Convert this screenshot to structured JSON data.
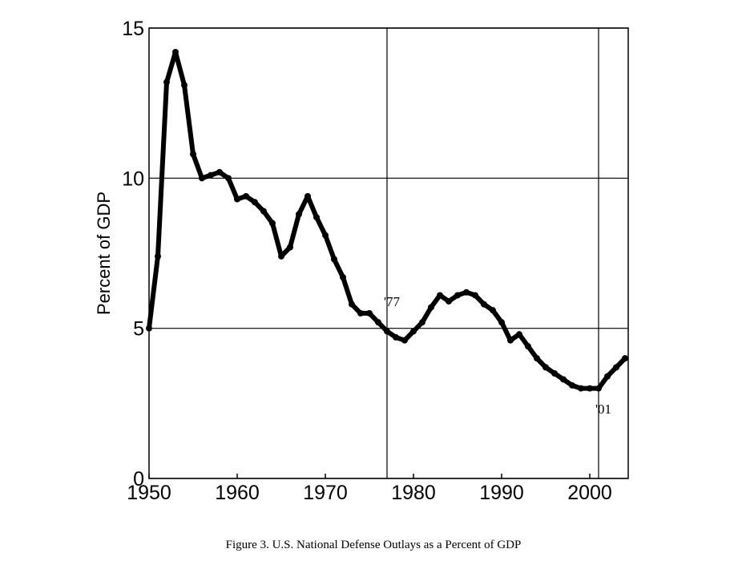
{
  "chart_data": {
    "type": "line",
    "title": "Figure 3.  U.S. National Defense Outlays as a Percent of GDP",
    "y_label": "Percent of GDP",
    "x": [
      1950,
      1951,
      1952,
      1953,
      1954,
      1955,
      1956,
      1957,
      1958,
      1959,
      1960,
      1961,
      1962,
      1963,
      1964,
      1965,
      1966,
      1967,
      1968,
      1969,
      1970,
      1971,
      1972,
      1973,
      1974,
      1975,
      1976,
      1977,
      1978,
      1979,
      1980,
      1981,
      1982,
      1983,
      1984,
      1985,
      1986,
      1987,
      1988,
      1989,
      1990,
      1991,
      1992,
      1993,
      1994,
      1995,
      1996,
      1997,
      1998,
      1999,
      2000,
      2001,
      2002,
      2003,
      2004
    ],
    "values": [
      5.0,
      7.4,
      13.2,
      14.2,
      13.1,
      10.8,
      10.0,
      10.1,
      10.2,
      10.0,
      9.3,
      9.4,
      9.2,
      8.9,
      8.5,
      7.4,
      7.7,
      8.8,
      9.4,
      8.7,
      8.1,
      7.3,
      6.7,
      5.8,
      5.5,
      5.5,
      5.2,
      4.9,
      4.7,
      4.6,
      4.9,
      5.2,
      5.7,
      6.1,
      5.9,
      6.1,
      6.2,
      6.1,
      5.8,
      5.6,
      5.2,
      4.6,
      4.8,
      4.4,
      4.0,
      3.7,
      3.5,
      3.3,
      3.1,
      3.0,
      3.0,
      3.0,
      3.4,
      3.7,
      4.0
    ],
    "color": "#000000",
    "xlim": [
      1950,
      2004
    ],
    "xticks": [
      1950,
      1960,
      1970,
      1980,
      1990,
      2000
    ],
    "ylim": [
      0,
      15
    ],
    "yticks": [
      0,
      5,
      10,
      15
    ],
    "grid": true,
    "annotations": [
      {
        "text": "'77",
        "x": 1977
      },
      {
        "text": "'01",
        "x": 2001
      }
    ]
  }
}
